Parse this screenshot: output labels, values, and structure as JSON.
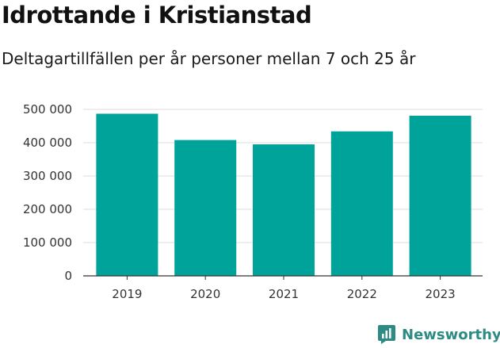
{
  "chart_data": {
    "type": "bar",
    "title": "Idrottande i Kristianstad",
    "subtitle": "Deltagartillfällen per år personer mellan 7 och 25 år",
    "categories": [
      "2019",
      "2020",
      "2021",
      "2022",
      "2023"
    ],
    "values": [
      487000,
      408000,
      395000,
      434000,
      481000
    ],
    "ylim": [
      0,
      500000
    ],
    "yticks": [
      0,
      100000,
      200000,
      300000,
      400000,
      500000
    ],
    "ytick_labels": [
      "0",
      "100 000",
      "200 000",
      "300 000",
      "400 000",
      "500 000"
    ],
    "grid": true,
    "bar_color": "#00a399",
    "grid_color": "#dcdcdc",
    "axis_color": "#333333"
  },
  "brand": {
    "name": "Newsworthy",
    "icon": "newsworthy-logo-icon",
    "color": "#2e8b84"
  }
}
